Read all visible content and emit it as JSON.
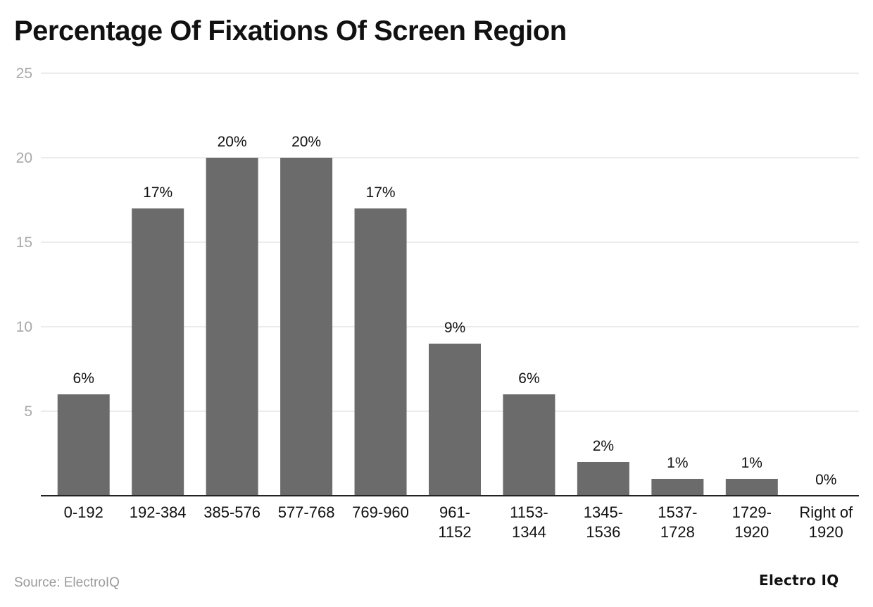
{
  "title": "Percentage Of Fixations Of Screen Region",
  "source": "Source: ElectroIQ",
  "logo": "Electro IQ",
  "colors": {
    "bar": "#6b6b6b",
    "grid": "#e6e6e6",
    "axis": "#222222",
    "tick": "#a8a8a8",
    "label": "#111111"
  },
  "chart_data": {
    "type": "bar",
    "categories": [
      "0-192",
      "192-384",
      "385-576",
      "577-768",
      "769-960",
      "961-1152",
      "1153-1344",
      "1345-1536",
      "1537-1728",
      "1729-1920",
      "Right of 1920"
    ],
    "category_lines": [
      [
        "0-192"
      ],
      [
        "192-384"
      ],
      [
        "385-576"
      ],
      [
        "577-768"
      ],
      [
        "769-960"
      ],
      [
        "961-",
        "1152"
      ],
      [
        "1153-",
        "1344"
      ],
      [
        "1345-",
        "1536"
      ],
      [
        "1537-",
        "1728"
      ],
      [
        "1729-",
        "1920"
      ],
      [
        "Right of",
        "1920"
      ]
    ],
    "values": [
      6,
      17,
      20,
      20,
      17,
      9,
      6,
      2,
      1,
      1,
      0
    ],
    "data_labels": [
      "6%",
      "17%",
      "20%",
      "20%",
      "17%",
      "9%",
      "6%",
      "2%",
      "1%",
      "1%",
      "0%"
    ],
    "yticks": [
      5,
      10,
      15,
      20,
      25
    ],
    "ylim": [
      0,
      25
    ],
    "grid": true,
    "legend": "none"
  }
}
